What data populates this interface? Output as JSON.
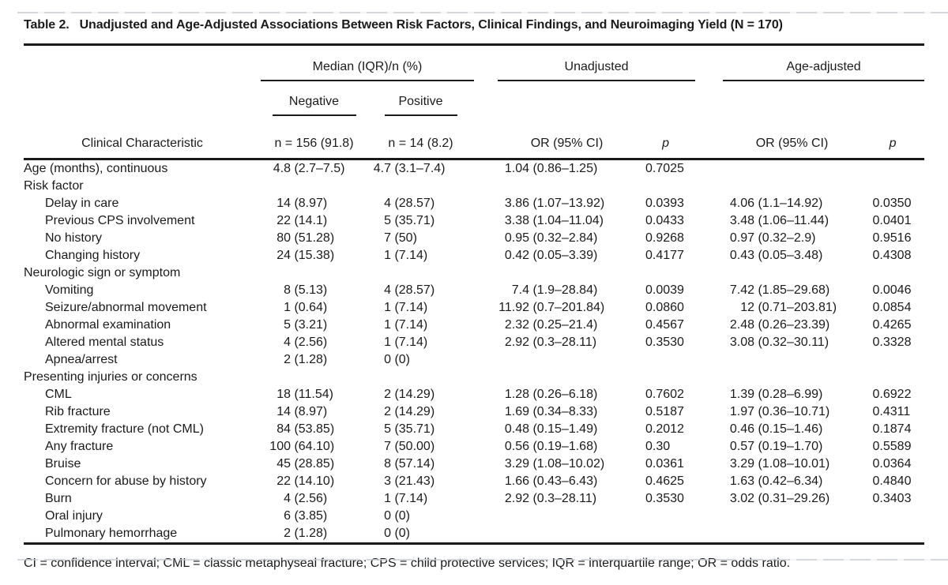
{
  "title": {
    "label": "Table 2.",
    "text": "Unadjusted and Age-Adjusted Associations Between Risk Factors, Clinical Findings, and Neuroimaging Yield (N = 170)"
  },
  "header": {
    "group_median": "Median (IQR)/n (%)",
    "group_unadjusted": "Unadjusted",
    "group_age_adjusted": "Age-adjusted",
    "sub_negative": "Negative",
    "sub_positive": "Positive",
    "col_characteristic": "Clinical Characteristic",
    "col_negative_n": "n = 156 (91.8)",
    "col_positive_n": "n = 14 (8.2)",
    "col_or": "OR (95% CI)",
    "col_p": "p"
  },
  "rows": [
    {
      "label": "Age (months), continuous",
      "section": false,
      "indent": false,
      "negative": "4.8 (2.7–7.5)",
      "positive": "4.7 (3.1–7.4)",
      "or_unadjusted": "1.04 (0.86–1.25)",
      "p_unadjusted": "0.7025",
      "or_age_adjusted": "",
      "p_age_adjusted": ""
    },
    {
      "label": "Risk factor",
      "section": true,
      "indent": false
    },
    {
      "label": "Delay in care",
      "section": false,
      "indent": true,
      "negative": "14 (8.97)",
      "positive": "4 (28.57)",
      "or_unadjusted": "3.86 (1.07–13.92)",
      "p_unadjusted": "0.0393",
      "or_age_adjusted": "4.06 (1.1–14.92)",
      "p_age_adjusted": "0.0350"
    },
    {
      "label": "Previous CPS involvement",
      "section": false,
      "indent": true,
      "negative": "22 (14.1)",
      "positive": "5 (35.71)",
      "or_unadjusted": "3.38 (1.04–11.04)",
      "p_unadjusted": "0.0433",
      "or_age_adjusted": "3.48 (1.06–11.44)",
      "p_age_adjusted": "0.0401"
    },
    {
      "label": "No history",
      "section": false,
      "indent": true,
      "negative": "80 (51.28)",
      "positive": "7 (50)",
      "or_unadjusted": "0.95 (0.32–2.84)",
      "p_unadjusted": "0.9268",
      "or_age_adjusted": "0.97 (0.32–2.9)",
      "p_age_adjusted": "0.9516"
    },
    {
      "label": "Changing history",
      "section": false,
      "indent": true,
      "negative": "24 (15.38)",
      "positive": "1 (7.14)",
      "or_unadjusted": "0.42 (0.05–3.39)",
      "p_unadjusted": "0.4177",
      "or_age_adjusted": "0.43 (0.05–3.48)",
      "p_age_adjusted": "0.4308"
    },
    {
      "label": "Neurologic sign or symptom",
      "section": true,
      "indent": false
    },
    {
      "label": "Vomiting",
      "section": false,
      "indent": true,
      "negative": "8 (5.13)",
      "positive": "4 (28.57)",
      "or_unadjusted": "7.4 (1.9–28.84)",
      "p_unadjusted": "0.0039",
      "or_age_adjusted": "7.42 (1.85–29.68)",
      "p_age_adjusted": "0.0046"
    },
    {
      "label": "Seizure/abnormal movement",
      "section": false,
      "indent": true,
      "negative": "1 (0.64)",
      "positive": "1 (7.14)",
      "or_unadjusted": "11.92 (0.7–201.84)",
      "p_unadjusted": "0.0860",
      "or_age_adjusted": "12 (0.71–203.81)",
      "p_age_adjusted": "0.0854"
    },
    {
      "label": "Abnormal examination",
      "section": false,
      "indent": true,
      "negative": "5 (3.21)",
      "positive": "1 (7.14)",
      "or_unadjusted": "2.32 (0.25–21.4)",
      "p_unadjusted": "0.4567",
      "or_age_adjusted": "2.48 (0.26–23.39)",
      "p_age_adjusted": "0.4265"
    },
    {
      "label": "Altered mental status",
      "section": false,
      "indent": true,
      "negative": "4 (2.56)",
      "positive": "1 (7.14)",
      "or_unadjusted": "2.92 (0.3–28.11)",
      "p_unadjusted": "0.3530",
      "or_age_adjusted": "3.08 (0.32–30.11)",
      "p_age_adjusted": "0.3328"
    },
    {
      "label": "Apnea/arrest",
      "section": false,
      "indent": true,
      "negative": "2 (1.28)",
      "positive": "0 (0)",
      "or_unadjusted": "",
      "p_unadjusted": "",
      "or_age_adjusted": "",
      "p_age_adjusted": ""
    },
    {
      "label": "Presenting injuries or concerns",
      "section": true,
      "indent": false
    },
    {
      "label": "CML",
      "section": false,
      "indent": true,
      "negative": "18 (11.54)",
      "positive": "2 (14.29)",
      "or_unadjusted": "1.28 (0.26–6.18)",
      "p_unadjusted": "0.7602",
      "or_age_adjusted": "1.39 (0.28–6.99)",
      "p_age_adjusted": "0.6922"
    },
    {
      "label": "Rib fracture",
      "section": false,
      "indent": true,
      "negative": "14 (8.97)",
      "positive": "2 (14.29)",
      "or_unadjusted": "1.69 (0.34–8.33)",
      "p_unadjusted": "0.5187",
      "or_age_adjusted": "1.97 (0.36–10.71)",
      "p_age_adjusted": "0.4311"
    },
    {
      "label": "Extremity fracture (not CML)",
      "section": false,
      "indent": true,
      "negative": "84 (53.85)",
      "positive": "5 (35.71)",
      "or_unadjusted": "0.48 (0.15–1.49)",
      "p_unadjusted": "0.2012",
      "or_age_adjusted": "0.46 (0.15–1.46)",
      "p_age_adjusted": "0.1874"
    },
    {
      "label": "Any fracture",
      "section": false,
      "indent": true,
      "negative": "100 (64.10)",
      "positive": "7 (50.00)",
      "or_unadjusted": "0.56 (0.19–1.68)",
      "p_unadjusted": "0.30",
      "or_age_adjusted": "0.57 (0.19–1.70)",
      "p_age_adjusted": "0.5589"
    },
    {
      "label": "Bruise",
      "section": false,
      "indent": true,
      "negative": "45 (28.85)",
      "positive": "8 (57.14)",
      "or_unadjusted": "3.29 (1.08–10.02)",
      "p_unadjusted": "0.0361",
      "or_age_adjusted": "3.29 (1.08–10.01)",
      "p_age_adjusted": "0.0364"
    },
    {
      "label": "Concern for abuse by history",
      "section": false,
      "indent": true,
      "negative": "22 (14.10)",
      "positive": "3 (21.43)",
      "or_unadjusted": "1.66 (0.43–6.43)",
      "p_unadjusted": "0.4625",
      "or_age_adjusted": "1.63 (0.42–6.34)",
      "p_age_adjusted": "0.4840"
    },
    {
      "label": "Burn",
      "section": false,
      "indent": true,
      "negative": "4 (2.56)",
      "positive": "1 (7.14)",
      "or_unadjusted": "2.92 (0.3–28.11)",
      "p_unadjusted": "0.3530",
      "or_age_adjusted": "3.02 (0.31–29.26)",
      "p_age_adjusted": "0.3403"
    },
    {
      "label": "Oral injury",
      "section": false,
      "indent": true,
      "negative": "6 (3.85)",
      "positive": "0 (0)",
      "or_unadjusted": "",
      "p_unadjusted": "",
      "or_age_adjusted": "",
      "p_age_adjusted": ""
    },
    {
      "label": "Pulmonary hemorrhage",
      "section": false,
      "indent": true,
      "negative": "2 (1.28)",
      "positive": "0 (0)",
      "or_unadjusted": "",
      "p_unadjusted": "",
      "or_age_adjusted": "",
      "p_age_adjusted": ""
    }
  ],
  "footnote": "CI = confidence interval; CML = classic metaphyseal fracture; CPS = child protective services; IQR = interquartile range; OR = odds ratio.",
  "colors": {
    "text": "#1b1b1b",
    "rule": "#1a1a1a",
    "scan_artifact": "#c6cbd1",
    "background": "#ffffff"
  }
}
